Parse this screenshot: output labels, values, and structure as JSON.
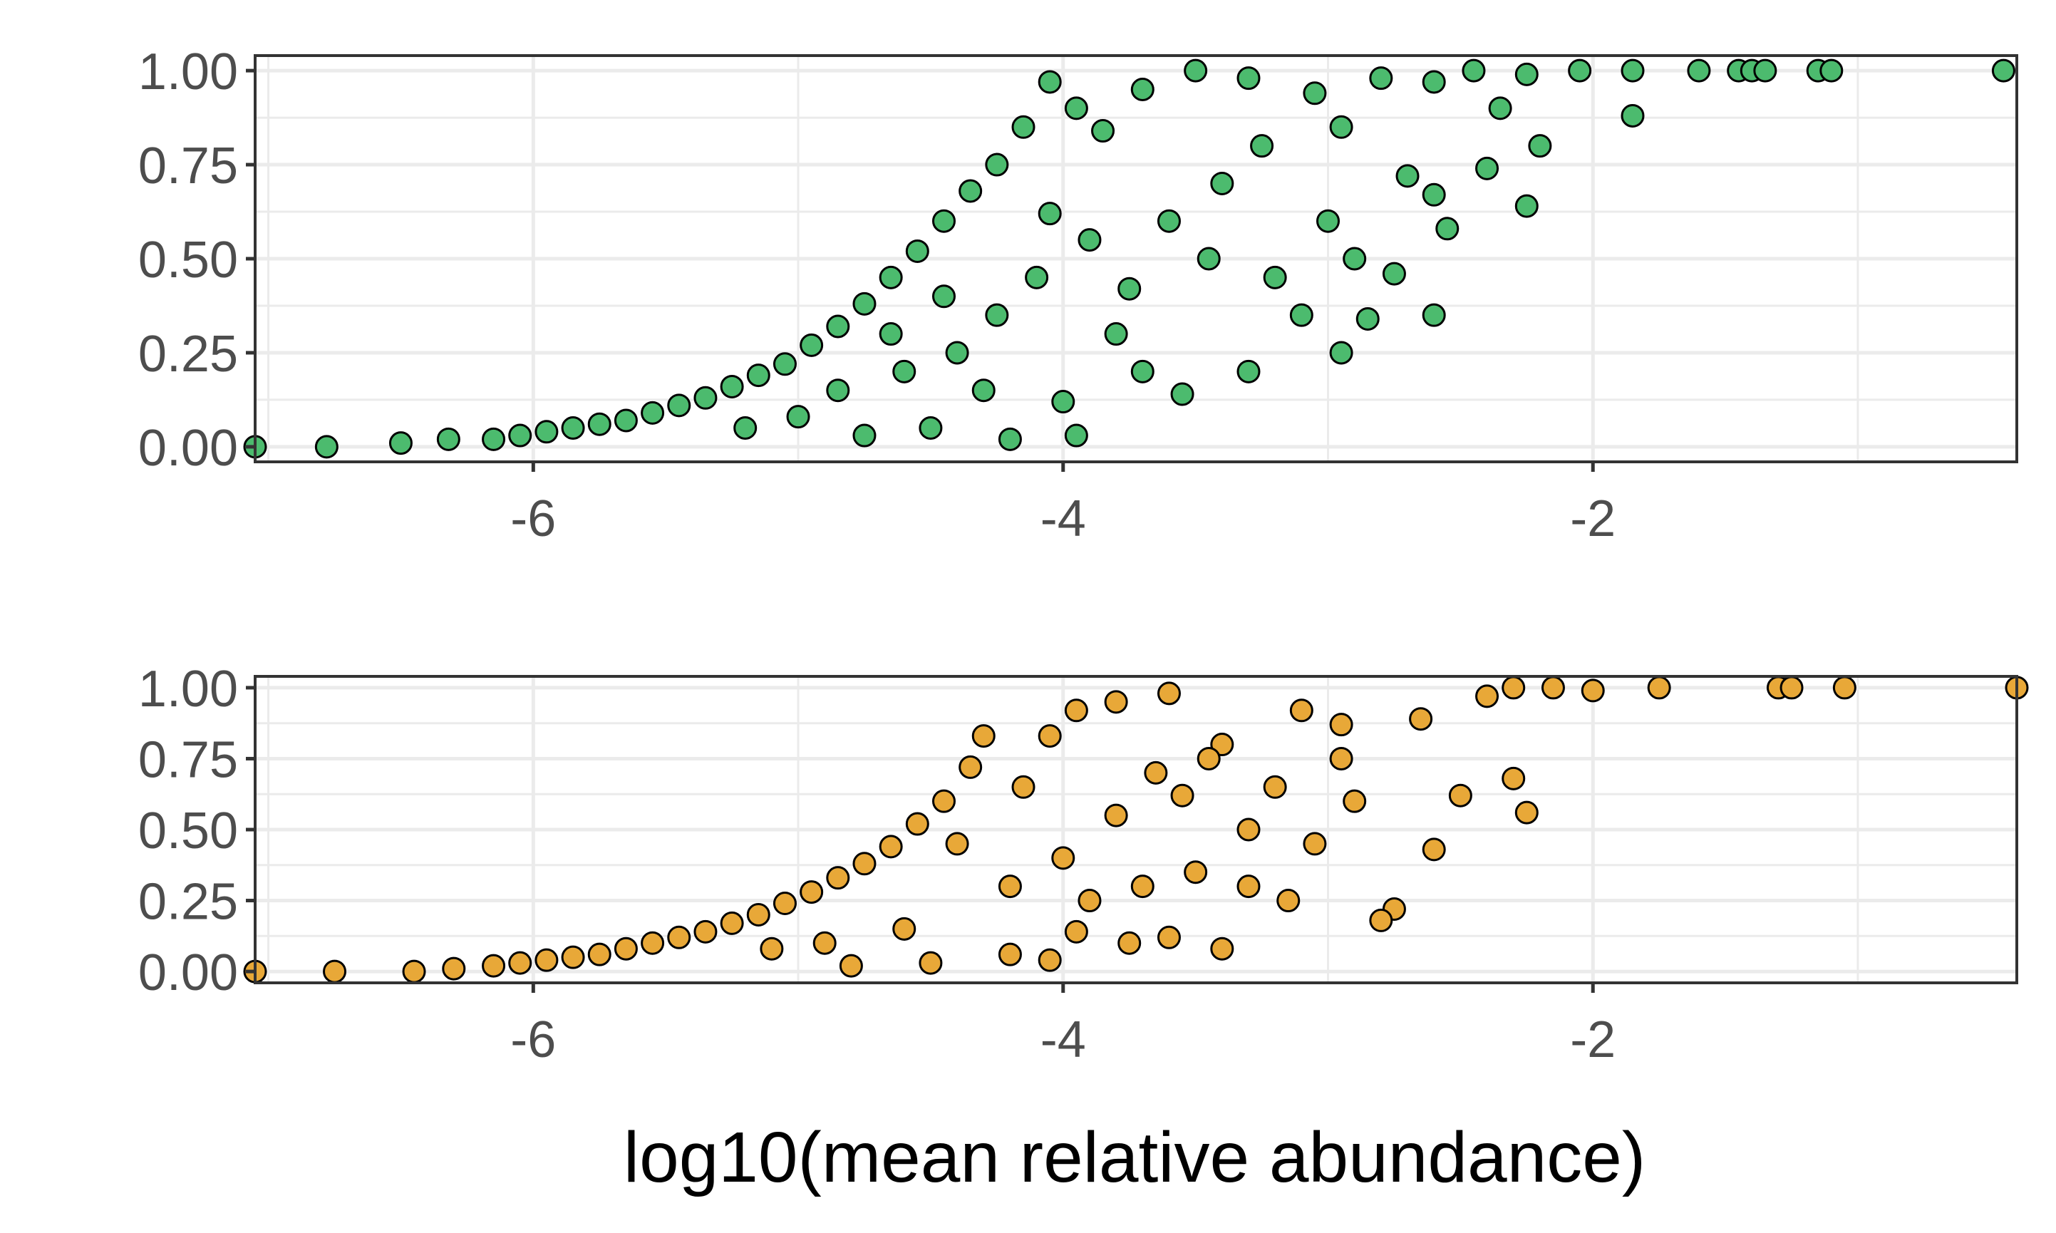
{
  "chart_data": [
    {
      "type": "scatter",
      "panel": "top",
      "x_range": [
        -7.05,
        -0.4
      ],
      "y_range": [
        -0.04,
        1.04
      ],
      "x_ticks": [
        -6,
        -4,
        -2
      ],
      "x_tick_labels": [
        "-6",
        "-4",
        "-2"
      ],
      "y_ticks": [
        0,
        0.25,
        0.5,
        0.75,
        1
      ],
      "y_tick_labels": [
        "0.00",
        "0.25",
        "0.50",
        "0.75",
        "1.00"
      ],
      "grid": true,
      "point_color": "#4cbb6e",
      "point_stroke": "#000000",
      "points": [
        {
          "x": -7.05,
          "y": 0.0
        },
        {
          "x": -6.78,
          "y": 0.0
        },
        {
          "x": -6.5,
          "y": 0.01
        },
        {
          "x": -6.32,
          "y": 0.02
        },
        {
          "x": -6.15,
          "y": 0.02
        },
        {
          "x": -6.05,
          "y": 0.03
        },
        {
          "x": -5.95,
          "y": 0.04
        },
        {
          "x": -5.85,
          "y": 0.05
        },
        {
          "x": -5.75,
          "y": 0.06
        },
        {
          "x": -5.65,
          "y": 0.07
        },
        {
          "x": -5.55,
          "y": 0.09
        },
        {
          "x": -5.45,
          "y": 0.11
        },
        {
          "x": -5.35,
          "y": 0.13
        },
        {
          "x": -5.25,
          "y": 0.16
        },
        {
          "x": -5.15,
          "y": 0.19
        },
        {
          "x": -5.05,
          "y": 0.22
        },
        {
          "x": -4.95,
          "y": 0.27
        },
        {
          "x": -4.85,
          "y": 0.32
        },
        {
          "x": -4.75,
          "y": 0.38
        },
        {
          "x": -4.65,
          "y": 0.45
        },
        {
          "x": -4.55,
          "y": 0.52
        },
        {
          "x": -4.45,
          "y": 0.6
        },
        {
          "x": -4.35,
          "y": 0.68
        },
        {
          "x": -4.25,
          "y": 0.75
        },
        {
          "x": -4.15,
          "y": 0.85
        },
        {
          "x": -4.05,
          "y": 0.97
        },
        {
          "x": -3.95,
          "y": 0.9
        },
        {
          "x": -3.85,
          "y": 0.84
        },
        {
          "x": -3.7,
          "y": 0.95
        },
        {
          "x": -3.5,
          "y": 1.0
        },
        {
          "x": -3.3,
          "y": 0.98
        },
        {
          "x": -3.05,
          "y": 0.94
        },
        {
          "x": -2.8,
          "y": 0.98
        },
        {
          "x": -2.6,
          "y": 0.97
        },
        {
          "x": -2.45,
          "y": 1.0
        },
        {
          "x": -2.25,
          "y": 0.99
        },
        {
          "x": -2.05,
          "y": 1.0
        },
        {
          "x": -1.85,
          "y": 1.0
        },
        {
          "x": -1.6,
          "y": 1.0
        },
        {
          "x": -1.45,
          "y": 1.0
        },
        {
          "x": -1.4,
          "y": 1.0
        },
        {
          "x": -1.35,
          "y": 1.0
        },
        {
          "x": -1.15,
          "y": 1.0
        },
        {
          "x": -1.1,
          "y": 1.0
        },
        {
          "x": -0.45,
          "y": 1.0
        },
        {
          "x": -1.85,
          "y": 0.88
        },
        {
          "x": -2.2,
          "y": 0.8
        },
        {
          "x": -2.25,
          "y": 0.64
        },
        {
          "x": -2.6,
          "y": 0.67
        },
        {
          "x": -2.6,
          "y": 0.35
        },
        {
          "x": -2.85,
          "y": 0.34
        },
        {
          "x": -2.95,
          "y": 0.25
        },
        {
          "x": -4.2,
          "y": 0.02
        },
        {
          "x": -3.95,
          "y": 0.03
        },
        {
          "x": -3.55,
          "y": 0.14
        },
        {
          "x": -3.7,
          "y": 0.2
        },
        {
          "x": -3.3,
          "y": 0.2
        },
        {
          "x": -3.1,
          "y": 0.35
        },
        {
          "x": -4.5,
          "y": 0.05
        },
        {
          "x": -4.75,
          "y": 0.03
        },
        {
          "x": -4.4,
          "y": 0.25
        },
        {
          "x": -4.1,
          "y": 0.45
        },
        {
          "x": -3.9,
          "y": 0.55
        },
        {
          "x": -3.6,
          "y": 0.6
        },
        {
          "x": -3.4,
          "y": 0.7
        },
        {
          "x": -3.2,
          "y": 0.45
        },
        {
          "x": -3.0,
          "y": 0.6
        },
        {
          "x": -2.9,
          "y": 0.5
        },
        {
          "x": -2.75,
          "y": 0.46
        },
        {
          "x": -3.8,
          "y": 0.3
        },
        {
          "x": -4.0,
          "y": 0.12
        },
        {
          "x": -4.3,
          "y": 0.15
        },
        {
          "x": -4.6,
          "y": 0.2
        },
        {
          "x": -5.0,
          "y": 0.08
        },
        {
          "x": -5.2,
          "y": 0.05
        },
        {
          "x": -4.85,
          "y": 0.15
        },
        {
          "x": -4.65,
          "y": 0.3
        },
        {
          "x": -4.45,
          "y": 0.4
        },
        {
          "x": -4.25,
          "y": 0.35
        },
        {
          "x": -4.05,
          "y": 0.62
        },
        {
          "x": -3.75,
          "y": 0.42
        },
        {
          "x": -3.45,
          "y": 0.5
        },
        {
          "x": -3.25,
          "y": 0.8
        },
        {
          "x": -2.95,
          "y": 0.85
        },
        {
          "x": -2.7,
          "y": 0.72
        },
        {
          "x": -2.55,
          "y": 0.58
        },
        {
          "x": -2.4,
          "y": 0.74
        },
        {
          "x": -2.35,
          "y": 0.9
        }
      ]
    },
    {
      "type": "scatter",
      "panel": "bottom",
      "x_range": [
        -7.05,
        -0.4
      ],
      "y_range": [
        -0.04,
        1.04
      ],
      "x_ticks": [
        -6,
        -4,
        -2
      ],
      "x_tick_labels": [
        "-6",
        "-4",
        "-2"
      ],
      "y_ticks": [
        0,
        0.25,
        0.5,
        0.75,
        1
      ],
      "y_tick_labels": [
        "0.00",
        "0.25",
        "0.50",
        "0.75",
        "1.00"
      ],
      "xlabel": "log10(mean relative abundance)",
      "grid": true,
      "point_color": "#e8a838",
      "point_stroke": "#000000",
      "points": [
        {
          "x": -7.05,
          "y": 0.0
        },
        {
          "x": -6.75,
          "y": 0.0
        },
        {
          "x": -6.45,
          "y": 0.0
        },
        {
          "x": -6.3,
          "y": 0.01
        },
        {
          "x": -6.15,
          "y": 0.02
        },
        {
          "x": -6.05,
          "y": 0.03
        },
        {
          "x": -5.95,
          "y": 0.04
        },
        {
          "x": -5.85,
          "y": 0.05
        },
        {
          "x": -5.75,
          "y": 0.06
        },
        {
          "x": -5.65,
          "y": 0.08
        },
        {
          "x": -5.55,
          "y": 0.1
        },
        {
          "x": -5.45,
          "y": 0.12
        },
        {
          "x": -5.35,
          "y": 0.14
        },
        {
          "x": -5.25,
          "y": 0.17
        },
        {
          "x": -5.15,
          "y": 0.2
        },
        {
          "x": -5.05,
          "y": 0.24
        },
        {
          "x": -4.95,
          "y": 0.28
        },
        {
          "x": -4.85,
          "y": 0.33
        },
        {
          "x": -4.75,
          "y": 0.38
        },
        {
          "x": -4.65,
          "y": 0.44
        },
        {
          "x": -4.55,
          "y": 0.52
        },
        {
          "x": -4.45,
          "y": 0.6
        },
        {
          "x": -4.35,
          "y": 0.72
        },
        {
          "x": -4.3,
          "y": 0.83
        },
        {
          "x": -4.05,
          "y": 0.83
        },
        {
          "x": -3.95,
          "y": 0.92
        },
        {
          "x": -3.8,
          "y": 0.95
        },
        {
          "x": -3.6,
          "y": 0.98
        },
        {
          "x": -3.4,
          "y": 0.8
        },
        {
          "x": -3.1,
          "y": 0.92
        },
        {
          "x": -2.95,
          "y": 0.87
        },
        {
          "x": -2.65,
          "y": 0.89
        },
        {
          "x": -2.4,
          "y": 0.97
        },
        {
          "x": -2.3,
          "y": 1.0
        },
        {
          "x": -2.15,
          "y": 1.0
        },
        {
          "x": -2.0,
          "y": 0.99
        },
        {
          "x": -1.75,
          "y": 1.0
        },
        {
          "x": -1.3,
          "y": 1.0
        },
        {
          "x": -1.25,
          "y": 1.0
        },
        {
          "x": -1.05,
          "y": 1.0
        },
        {
          "x": -0.4,
          "y": 1.0
        },
        {
          "x": -2.3,
          "y": 0.68
        },
        {
          "x": -2.25,
          "y": 0.56
        },
        {
          "x": -2.5,
          "y": 0.62
        },
        {
          "x": -2.6,
          "y": 0.43
        },
        {
          "x": -2.75,
          "y": 0.22
        },
        {
          "x": -2.8,
          "y": 0.18
        },
        {
          "x": -3.15,
          "y": 0.25
        },
        {
          "x": -3.3,
          "y": 0.3
        },
        {
          "x": -3.4,
          "y": 0.08
        },
        {
          "x": -3.6,
          "y": 0.12
        },
        {
          "x": -3.75,
          "y": 0.1
        },
        {
          "x": -3.95,
          "y": 0.14
        },
        {
          "x": -4.05,
          "y": 0.04
        },
        {
          "x": -4.2,
          "y": 0.06
        },
        {
          "x": -4.5,
          "y": 0.03
        },
        {
          "x": -4.8,
          "y": 0.02
        },
        {
          "x": -4.0,
          "y": 0.4
        },
        {
          "x": -3.8,
          "y": 0.55
        },
        {
          "x": -3.55,
          "y": 0.62
        },
        {
          "x": -3.3,
          "y": 0.5
        },
        {
          "x": -3.05,
          "y": 0.45
        },
        {
          "x": -2.9,
          "y": 0.6
        },
        {
          "x": -3.9,
          "y": 0.25
        },
        {
          "x": -4.2,
          "y": 0.3
        },
        {
          "x": -4.6,
          "y": 0.15
        },
        {
          "x": -4.9,
          "y": 0.1
        },
        {
          "x": -5.1,
          "y": 0.08
        },
        {
          "x": -4.4,
          "y": 0.45
        },
        {
          "x": -4.15,
          "y": 0.65
        },
        {
          "x": -3.65,
          "y": 0.7
        },
        {
          "x": -3.45,
          "y": 0.75
        },
        {
          "x": -3.5,
          "y": 0.35
        },
        {
          "x": -3.7,
          "y": 0.3
        },
        {
          "x": -3.2,
          "y": 0.65
        },
        {
          "x": -2.95,
          "y": 0.75
        }
      ]
    }
  ]
}
